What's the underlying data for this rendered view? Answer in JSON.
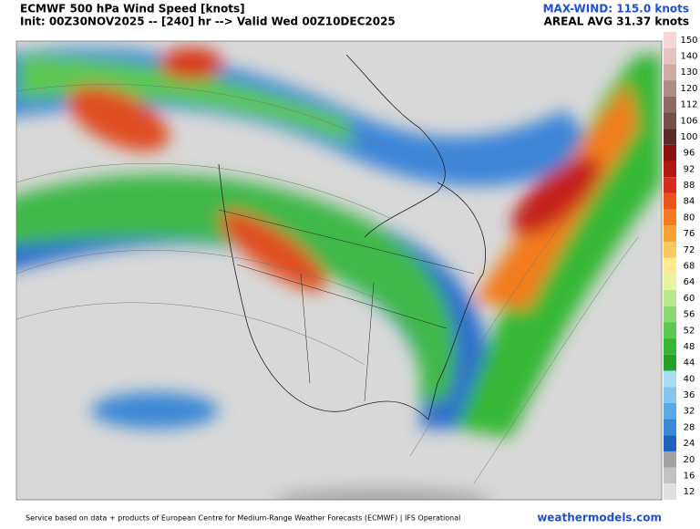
{
  "header": {
    "title": "ECMWF 500 hPa Wind Speed [knots]",
    "subtitle": "Init: 00Z30NOV2025 -- [240] hr --> Valid Wed 00Z10DEC2025",
    "max_wind": "MAX-WIND: 115.0 knots",
    "areal_avg": "AREAL AVG 31.37 knots"
  },
  "legend": {
    "entries": [
      {
        "label": 150,
        "color": "#f6d6d6"
      },
      {
        "label": 140,
        "color": "#e6c2c0"
      },
      {
        "label": 130,
        "color": "#cdaaa4"
      },
      {
        "label": 120,
        "color": "#ae8c86"
      },
      {
        "label": 112,
        "color": "#8f6a64"
      },
      {
        "label": 106,
        "color": "#74504a"
      },
      {
        "label": 100,
        "color": "#5a2c28"
      },
      {
        "label": 96,
        "color": "#8c1010"
      },
      {
        "label": 92,
        "color": "#b41816"
      },
      {
        "label": 88,
        "color": "#d52c1c"
      },
      {
        "label": 84,
        "color": "#ea521f"
      },
      {
        "label": 80,
        "color": "#f27c1f"
      },
      {
        "label": 76,
        "color": "#f8a232"
      },
      {
        "label": 72,
        "color": "#fbc95c"
      },
      {
        "label": 68,
        "color": "#fde98e"
      },
      {
        "label": 64,
        "color": "#e6f4a0"
      },
      {
        "label": 60,
        "color": "#b8e78e"
      },
      {
        "label": 56,
        "color": "#8ad872"
      },
      {
        "label": 52,
        "color": "#5cc852"
      },
      {
        "label": 48,
        "color": "#34b834"
      },
      {
        "label": 44,
        "color": "#24a02a"
      },
      {
        "label": 40,
        "color": "#a6def0"
      },
      {
        "label": 36,
        "color": "#86c6ee"
      },
      {
        "label": 32,
        "color": "#5aa8e6"
      },
      {
        "label": 28,
        "color": "#3a88d6"
      },
      {
        "label": 24,
        "color": "#2060be"
      },
      {
        "label": 20,
        "color": "#a2a2a2"
      },
      {
        "label": 16,
        "color": "#c2c2c2"
      },
      {
        "label": 12,
        "color": "#e0e0e0"
      }
    ]
  },
  "footer": {
    "credit": "Service based on data + products of European Centre for Medium-Range Weather Forecasts (ECMWF) | IFS Operational",
    "site": "weathermodels.com"
  }
}
